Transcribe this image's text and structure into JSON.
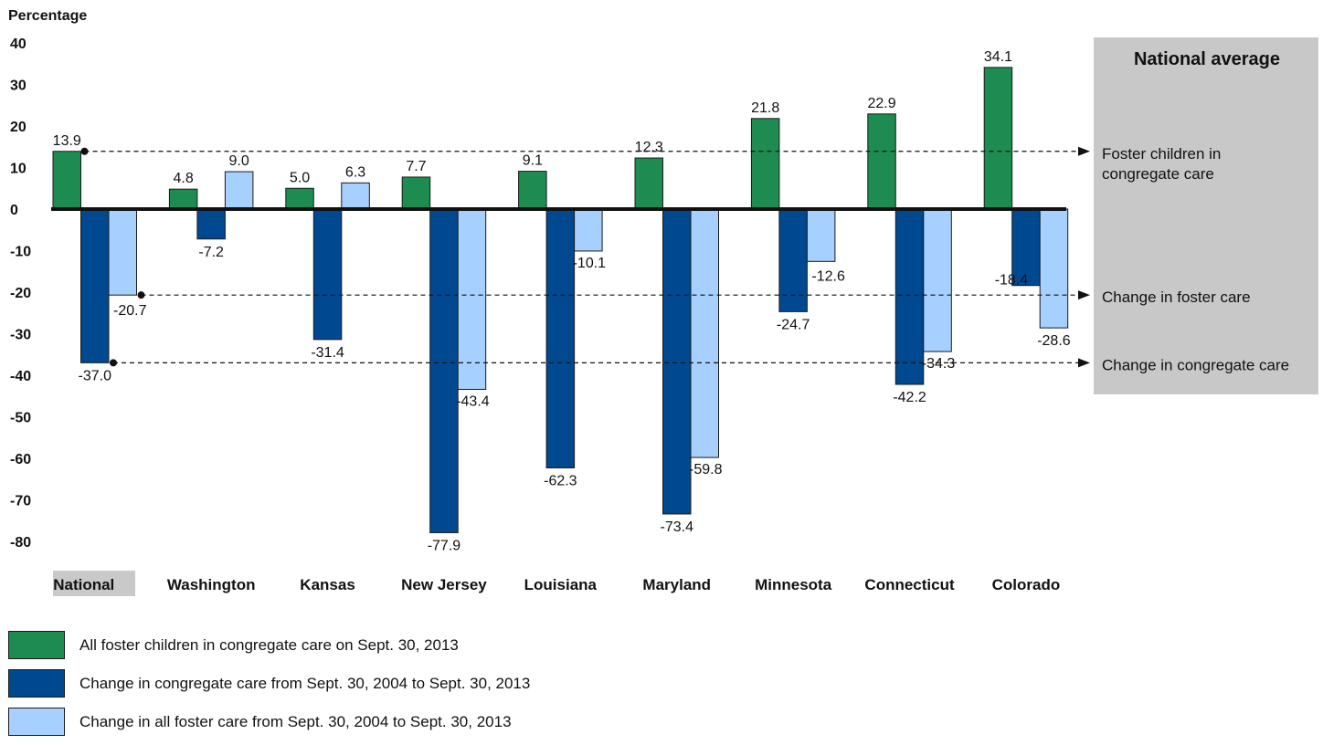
{
  "chart_data": {
    "type": "bar",
    "ylabel": "Percentage",
    "ylim": [
      -80,
      40
    ],
    "yticks": [
      40,
      30,
      20,
      10,
      0,
      -10,
      -20,
      -30,
      -40,
      -50,
      -60,
      -70,
      -80
    ],
    "categories": [
      "National",
      "Washington",
      "Kansas",
      "New Jersey",
      "Louisiana",
      "Maryland",
      "Minnesota",
      "Connecticut",
      "Colorado"
    ],
    "highlighted_category": "National",
    "series": [
      {
        "name": "All foster children in congregate care on Sept. 30, 2013",
        "color": "#1e8c50",
        "values": [
          13.9,
          4.8,
          5.0,
          7.7,
          9.1,
          12.3,
          21.8,
          22.9,
          34.1
        ]
      },
      {
        "name": "Change in congregate care from Sept. 30, 2004 to Sept. 30, 2013",
        "color": "#004990",
        "values": [
          -37.0,
          -7.2,
          -31.4,
          -77.9,
          -62.3,
          -73.4,
          -24.7,
          -42.2,
          -18.4
        ]
      },
      {
        "name": "Change in all foster care from Sept. 30, 2004 to Sept. 30, 2013",
        "color": "#a6d0ff",
        "values": [
          -20.7,
          9.0,
          6.3,
          -43.4,
          -10.1,
          -59.8,
          -12.6,
          -34.3,
          -28.6
        ]
      }
    ],
    "value_labels": [
      [
        "13.9",
        "4.8",
        "5.0",
        "7.7",
        "9.1",
        "12.3",
        "21.8",
        "22.9",
        "34.1"
      ],
      [
        "-37.0",
        "-7.2",
        "-31.4",
        "-77.9",
        "-62.3",
        "-73.4",
        "-24.7",
        "-42.2",
        "-18.4"
      ],
      [
        "-20.7",
        "9.0",
        "6.3",
        "-43.4",
        "-10.1",
        "-59.8",
        "-12.6",
        "-34.3",
        "-28.6"
      ]
    ],
    "reference_panel": {
      "title": "National average",
      "items": [
        {
          "label_lines": [
            "Foster children in",
            "congregate care"
          ],
          "series_index": 0
        },
        {
          "label_lines": [
            "Change in foster care"
          ],
          "series_index": 2
        },
        {
          "label_lines": [
            "Change in congregate care"
          ],
          "series_index": 1
        }
      ]
    },
    "legend": "bottom-left",
    "grid": false
  }
}
